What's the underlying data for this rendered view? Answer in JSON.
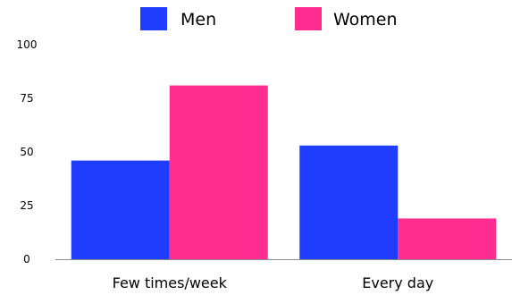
{
  "chart_data": {
    "type": "bar",
    "categories": [
      "Few times/week",
      "Every day"
    ],
    "series": [
      {
        "name": "Men",
        "values": [
          46,
          53
        ]
      },
      {
        "name": "Women",
        "values": [
          81,
          19
        ]
      }
    ],
    "ylim": [
      0,
      100
    ],
    "yticks": [
      0,
      25,
      50,
      75,
      100
    ],
    "legend_placement": "top-center",
    "grid": false
  },
  "colors": {
    "Men": "#1f3cff",
    "Women": "#ff2d8f",
    "axis": "#8c8c8c"
  }
}
